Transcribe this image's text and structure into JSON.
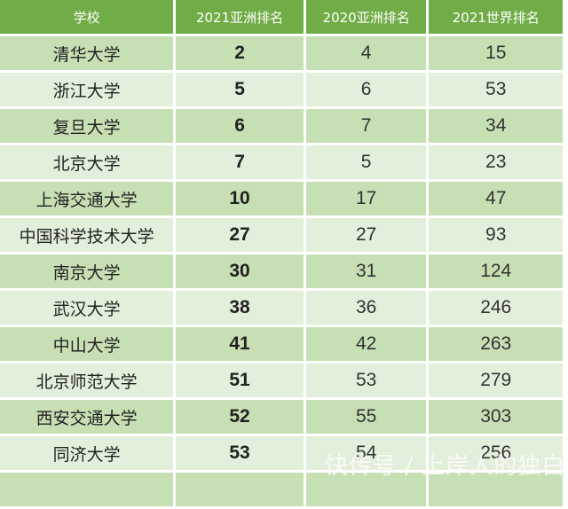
{
  "table": {
    "headers": [
      "学校",
      "2021亚洲排名",
      "2020亚洲排名",
      "2021世界排名"
    ],
    "rows": [
      {
        "school": "清华大学",
        "asia_2021": "2",
        "asia_2020": "4",
        "world_2021": "15"
      },
      {
        "school": "浙江大学",
        "asia_2021": "5",
        "asia_2020": "6",
        "world_2021": "53"
      },
      {
        "school": "复旦大学",
        "asia_2021": "6",
        "asia_2020": "7",
        "world_2021": "34"
      },
      {
        "school": "北京大学",
        "asia_2021": "7",
        "asia_2020": "5",
        "world_2021": "23"
      },
      {
        "school": "上海交通大学",
        "asia_2021": "10",
        "asia_2020": "17",
        "world_2021": "47"
      },
      {
        "school": "中国科学技术大学",
        "asia_2021": "27",
        "asia_2020": "27",
        "world_2021": "93"
      },
      {
        "school": "南京大学",
        "asia_2021": "30",
        "asia_2020": "31",
        "world_2021": "124"
      },
      {
        "school": "武汉大学",
        "asia_2021": "38",
        "asia_2020": "36",
        "world_2021": "246"
      },
      {
        "school": "中山大学",
        "asia_2021": "41",
        "asia_2020": "42",
        "world_2021": "263"
      },
      {
        "school": "北京师范大学",
        "asia_2021": "51",
        "asia_2020": "53",
        "world_2021": "279"
      },
      {
        "school": "西安交通大学",
        "asia_2021": "52",
        "asia_2020": "55",
        "world_2021": "303"
      },
      {
        "school": "同济大学",
        "asia_2021": "53",
        "asia_2020": "54",
        "world_2021": "256"
      }
    ]
  },
  "colors": {
    "header": "#70ad47",
    "row_odd": "#c6e0b4",
    "row_even": "#e2efda"
  },
  "watermark": "快传号 / 上岸人的独白"
}
